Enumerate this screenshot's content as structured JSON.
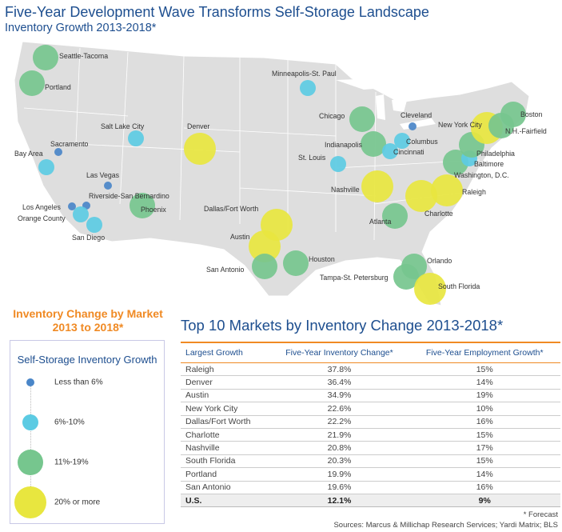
{
  "title": "Five-Year Development Wave Transforms Self-Storage Landscape",
  "subtitle": "Inventory Growth 2013-2018*",
  "colors": {
    "less_than_6": "#4a86c8",
    "6_to_10": "#5ccbe3",
    "11_to_19": "#76c68e",
    "20_or_more": "#e8e63f",
    "accent": "#f08a24",
    "title": "#1d4e8f"
  },
  "map": {
    "markets": [
      {
        "name": "Seattle-Tacoma",
        "category": "11_to_19"
      },
      {
        "name": "Portland",
        "category": "11_to_19"
      },
      {
        "name": "Minneapolis-St. Paul",
        "category": "6_to_10"
      },
      {
        "name": "Salt Lake City",
        "category": "6_to_10"
      },
      {
        "name": "Denver",
        "category": "20_or_more"
      },
      {
        "name": "Sacramento",
        "category": "less_than_6"
      },
      {
        "name": "Bay Area",
        "category": "6_to_10"
      },
      {
        "name": "Las Vegas",
        "category": "less_than_6"
      },
      {
        "name": "Riverside-San Bernardino",
        "category": "less_than_6"
      },
      {
        "name": "Los Angeles",
        "category": "less_than_6"
      },
      {
        "name": "Orange County",
        "category": "6_to_10"
      },
      {
        "name": "San Diego",
        "category": "6_to_10"
      },
      {
        "name": "Phoenix",
        "category": "11_to_19"
      },
      {
        "name": "Chicago",
        "category": "11_to_19"
      },
      {
        "name": "Cleveland",
        "category": "less_than_6"
      },
      {
        "name": "Columbus",
        "category": "6_to_10"
      },
      {
        "name": "Indianapolis",
        "category": "11_to_19"
      },
      {
        "name": "Cincinnati",
        "category": "6_to_10"
      },
      {
        "name": "St. Louis",
        "category": "6_to_10"
      },
      {
        "name": "Nashville",
        "category": "20_or_more"
      },
      {
        "name": "Atlanta",
        "category": "11_to_19"
      },
      {
        "name": "Charlotte",
        "category": "20_or_more"
      },
      {
        "name": "Raleigh",
        "category": "20_or_more"
      },
      {
        "name": "Washington, D.C.",
        "category": "11_to_19"
      },
      {
        "name": "Baltimore",
        "category": "6_to_10"
      },
      {
        "name": "Philadelphia",
        "category": "11_to_19"
      },
      {
        "name": "New York City",
        "category": "20_or_more"
      },
      {
        "name": "N.H.-Fairfield",
        "category": "11_to_19"
      },
      {
        "name": "Boston",
        "category": "11_to_19"
      },
      {
        "name": "Dallas/Fort Worth",
        "category": "20_or_more"
      },
      {
        "name": "Austin",
        "category": "20_or_more"
      },
      {
        "name": "San Antonio",
        "category": "11_to_19"
      },
      {
        "name": "Houston",
        "category": "11_to_19"
      },
      {
        "name": "Orlando",
        "category": "11_to_19"
      },
      {
        "name": "Tampa-St. Petersburg",
        "category": "11_to_19"
      },
      {
        "name": "South Florida",
        "category": "20_or_more"
      }
    ]
  },
  "legend": {
    "heading_line1": "Inventory Change by Market",
    "heading_line2": "2013 to 2018*",
    "title": "Self-Storage Inventory Growth",
    "items": [
      {
        "key": "less_than_6",
        "label": "Less than 6%"
      },
      {
        "key": "6_to_10",
        "label": "6%-10%"
      },
      {
        "key": "11_to_19",
        "label": "11%-19%"
      },
      {
        "key": "20_or_more",
        "label": "20% or more"
      }
    ]
  },
  "table": {
    "title": "Top 10 Markets by Inventory Change 2013-2018*",
    "headers": [
      "Largest Growth",
      "Five-Year Inventory Change*",
      "Five-Year Employment Growth*"
    ],
    "rows": [
      [
        "Raleigh",
        "37.8%",
        "15%"
      ],
      [
        "Denver",
        "36.4%",
        "14%"
      ],
      [
        "Austin",
        "34.9%",
        "19%"
      ],
      [
        "New York City",
        "22.6%",
        "10%"
      ],
      [
        "Dallas/Fort Worth",
        "22.2%",
        "16%"
      ],
      [
        "Charlotte",
        "21.9%",
        "15%"
      ],
      [
        "Nashville",
        "20.8%",
        "17%"
      ],
      [
        "South Florida",
        "20.3%",
        "15%"
      ],
      [
        "Portland",
        "19.9%",
        "14%"
      ],
      [
        "San Antonio",
        "19.6%",
        "16%"
      ]
    ],
    "total": [
      "U.S.",
      "12.1%",
      "9%"
    ]
  },
  "footnote": "* Forecast",
  "sources": "Sources: Marcus & Millichap Research Services; Yardi Matrix; BLS"
}
